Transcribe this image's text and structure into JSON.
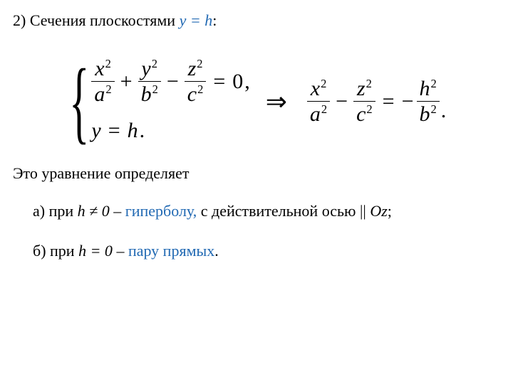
{
  "colors": {
    "accent": "#2169b3",
    "text": "#000000",
    "background": "#ffffff"
  },
  "heading": {
    "prefix": "2) Сечения плоскостями   ",
    "var": "y = h",
    "suffix": ":"
  },
  "system": {
    "line1": {
      "t1_num": "x",
      "t1_den": "a",
      "op1": "+",
      "t2_num": "y",
      "t2_den": "b",
      "op2": "−",
      "t3_num": "z",
      "t3_den": "c",
      "eq": "=",
      "rhs": "0",
      "trail": ","
    },
    "line2": {
      "lhs_var": "y",
      "eq": "=",
      "rhs_var": "h",
      "trail": "."
    }
  },
  "implies": "⇒",
  "result": {
    "t1_num": "x",
    "t1_den": "a",
    "op1": "−",
    "t2_num": "z",
    "t2_den": "c",
    "eq": "=",
    "neg": "−",
    "t3_num": "h",
    "t3_den": "b",
    "trail": "."
  },
  "sup": "2",
  "after": "Это уравнение определяет",
  "case_a": {
    "prefix": "а) при  ",
    "cond": "h ≠ 0",
    "dash": "  – ",
    "term": "гиперболу,",
    "rest": " с действительной осью || ",
    "axis": "Oz",
    "semi": ";"
  },
  "case_b": {
    "prefix": "б) при  ",
    "cond": "h = 0",
    "dash": "  – ",
    "term": "пару прямых",
    "trail": "."
  }
}
